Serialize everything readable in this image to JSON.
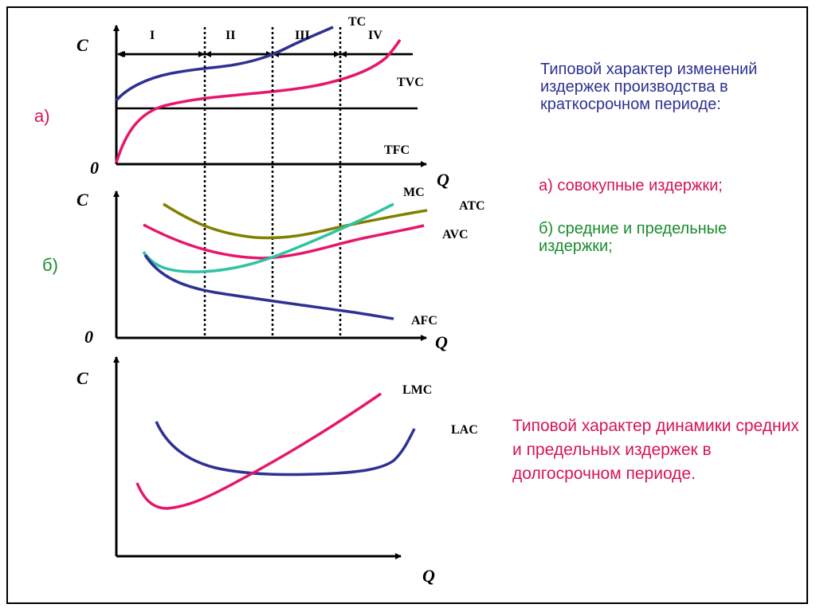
{
  "colors": {
    "blue": "#2e3192",
    "magenta": "#e6176b",
    "teal": "#2ec4a4",
    "olive": "#808000",
    "black": "#000000",
    "green": "#1a8c2e"
  },
  "panel_a": {
    "part_label": "а)",
    "axis_y": "C",
    "axis_x": "Q",
    "origin": "0",
    "stages": [
      "I",
      "II",
      "III",
      "IV"
    ],
    "curves": {
      "tc": "TC",
      "tvc": "TVC",
      "tfc": "TFC"
    }
  },
  "panel_b": {
    "part_label": "б)",
    "axis_y": "C",
    "axis_x": "Q",
    "origin": "0",
    "curves": {
      "mc": "MC",
      "atc": "ATC",
      "avc": "AVC",
      "afc": "AFC"
    }
  },
  "panel_c": {
    "axis_y": "C",
    "axis_x": "Q",
    "curves": {
      "lmc": "LMC",
      "lac": "LAC"
    }
  },
  "text": {
    "short_run_title": "Типовой характер изменений издержек производства в краткосрочном периоде:",
    "legend_a": "а) совокупные издержки;",
    "legend_b": "б) средние и предельные издержки;",
    "long_run_title": "Типовой характер динамики средних и предельных издержек в долгосрочном периоде."
  }
}
